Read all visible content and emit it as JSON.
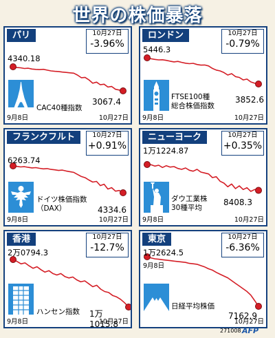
{
  "title": "世界の株価暴落",
  "footer": {
    "code": "271008",
    "credit": "AFP"
  },
  "colors": {
    "line": "#d41d25",
    "border": "#13407d",
    "icon_bg": "#2c8ed6"
  },
  "chart_data": [
    {
      "type": "line",
      "market": "パリ",
      "index_name": "CAC40種指数",
      "date_label": "10月27日",
      "change": "-3.96%",
      "start_label": "4340.18",
      "end_label": "3067.4",
      "x_start": "9月8日",
      "x_end": "10月27日",
      "values": [
        4340,
        4300,
        4285,
        4250,
        4265,
        4220,
        4200,
        4190,
        4205,
        4160,
        4120,
        4100,
        4090,
        4060,
        4040,
        4020,
        4000,
        3900,
        3760,
        3780,
        3650,
        3470,
        3530,
        3390,
        3420,
        3270,
        3300,
        3150,
        3110,
        3067
      ]
    },
    {
      "type": "line",
      "market": "ロンドン",
      "index_name": "FTSE100種\n総合株価指数",
      "date_label": "10月27日",
      "change": "-0.79%",
      "start_label": "5446.3",
      "end_label": "3852.6",
      "x_start": "9月8日",
      "x_end": "10月27日",
      "values": [
        5446,
        5390,
        5350,
        5320,
        5330,
        5290,
        5240,
        5200,
        5230,
        5170,
        5120,
        5090,
        5110,
        5040,
        5000,
        5010,
        4950,
        4800,
        4700,
        4650,
        4550,
        4400,
        4480,
        4300,
        4250,
        4100,
        4150,
        3980,
        3900,
        3853
      ]
    },
    {
      "type": "line",
      "market": "フランクフルト",
      "index_name": "ドイツ株価指数\n（DAX）",
      "date_label": "10月27日",
      "change": "+0.91%",
      "start_label": "6263.74",
      "end_label": "4334.6",
      "x_start": "9月8日",
      "x_end": "10月27日",
      "values": [
        6264,
        6230,
        6190,
        6210,
        6160,
        6120,
        6140,
        6090,
        6050,
        6070,
        6010,
        5980,
        5940,
        5960,
        5900,
        5850,
        5800,
        5650,
        5500,
        5420,
        5250,
        5100,
        5150,
        4850,
        4950,
        4600,
        4700,
        4450,
        4500,
        4335
      ]
    },
    {
      "type": "line",
      "market": "ニューヨーク",
      "index_name": "ダウ工業株\n30種平均",
      "date_label": "10月27日",
      "change": "+0.35%",
      "start_label": "1万1224.87",
      "end_label": "8408.3",
      "x_start": "9月8日",
      "x_end": "10月27日",
      "values": [
        11225,
        11200,
        11050,
        11150,
        10900,
        11100,
        10950,
        11000,
        10800,
        10700,
        10850,
        10600,
        10500,
        10700,
        10400,
        10300,
        10200,
        9800,
        9900,
        9400,
        9200,
        8800,
        9100,
        8600,
        8900,
        8500,
        8700,
        8300,
        8500,
        8408
      ]
    },
    {
      "type": "line",
      "market": "香港",
      "index_name": "ハンセン指数",
      "date_label": "10月27日",
      "change": "-12.7%",
      "start_label": "2万0794.3",
      "end_label": "1万1015.8",
      "x_start": "9月8日",
      "x_end": "10月27日",
      "values": [
        20794,
        20400,
        19900,
        20100,
        19500,
        19000,
        19300,
        18700,
        18200,
        18500,
        17900,
        17600,
        17900,
        17300,
        17000,
        17200,
        16600,
        16200,
        16400,
        15800,
        15200,
        15500,
        14700,
        14200,
        14000,
        13400,
        13100,
        12600,
        11900,
        11016
      ]
    },
    {
      "type": "line",
      "market": "東京",
      "index_name": "日経平均株価",
      "date_label": "10月27日",
      "change": "-6.36%",
      "start_label": "1万2624.5",
      "end_label": "7162.9",
      "x_start": "9月8日",
      "x_end": "10月27日",
      "values": [
        12625,
        12500,
        12400,
        12350,
        12300,
        12250,
        12200,
        12150,
        12100,
        12050,
        12000,
        11900,
        11850,
        11800,
        11650,
        11500,
        11300,
        11150,
        10900,
        10700,
        10500,
        10300,
        10000,
        9700,
        9400,
        9100,
        8800,
        8400,
        7800,
        7163
      ]
    }
  ]
}
